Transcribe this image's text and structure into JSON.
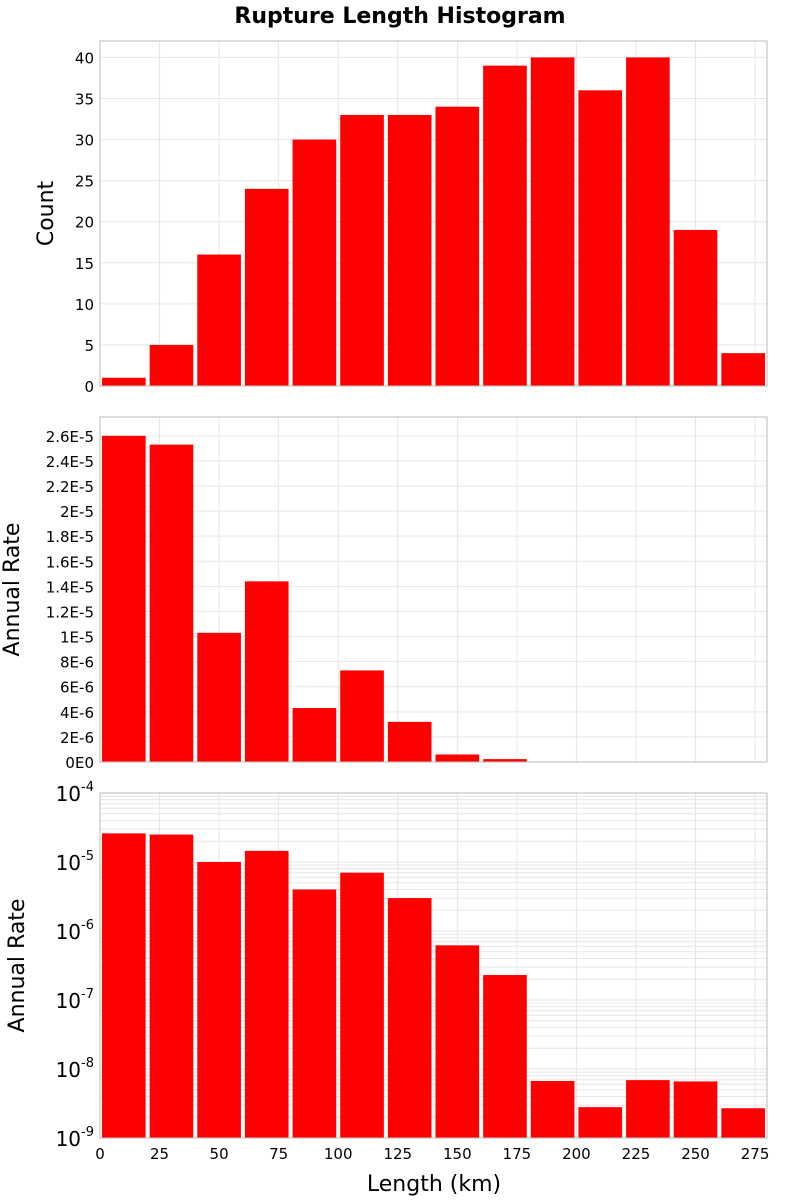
{
  "chart_data": {
    "type": "bar",
    "title": "Rupture Length Histogram",
    "bar_color": "#ff0000",
    "grid_color": "#e6e6e6",
    "frame_color": "#bbbbbb",
    "xlabel": "Length (km)",
    "xlim": [
      0,
      280
    ],
    "x_ticks": [
      0,
      25,
      50,
      75,
      100,
      125,
      150,
      175,
      200,
      225,
      250,
      275
    ],
    "bin_width": 20,
    "bin_centers": [
      10,
      30,
      50,
      70,
      90,
      110,
      130,
      150,
      170,
      190,
      210,
      230,
      250,
      270
    ],
    "panels": [
      {
        "ylabel": "Count",
        "scale": "linear",
        "ylim": [
          0,
          42
        ],
        "y_ticks": [
          0,
          5,
          10,
          15,
          20,
          25,
          30,
          35,
          40
        ],
        "y_tick_labels": [
          "0",
          "5",
          "10",
          "15",
          "20",
          "25",
          "30",
          "35",
          "40"
        ],
        "values": [
          1,
          5,
          16,
          24,
          30,
          33,
          33,
          34,
          39,
          40,
          36,
          40,
          19,
          4
        ]
      },
      {
        "ylabel": "Annual Rate",
        "scale": "linear",
        "ylim": [
          0,
          2.75e-05
        ],
        "y_ticks": [
          0,
          2e-06,
          4e-06,
          6e-06,
          8e-06,
          1e-05,
          1.2e-05,
          1.4e-05,
          1.6e-05,
          1.8e-05,
          2e-05,
          2.2e-05,
          2.4e-05,
          2.6e-05
        ],
        "y_tick_labels": [
          "0E0",
          "2E-6",
          "4E-6",
          "6E-6",
          "8E-6",
          "1E-5",
          "1.2E-5",
          "1.4E-5",
          "1.6E-5",
          "1.8E-5",
          "2E-5",
          "2.2E-5",
          "2.4E-5",
          "2.6E-5"
        ],
        "values": [
          2.6e-05,
          2.53e-05,
          1.03e-05,
          1.44e-05,
          4.3e-06,
          7.3e-06,
          3.2e-06,
          6e-07,
          2.3e-07,
          7e-09,
          3e-09,
          7e-09,
          7e-09,
          3e-09
        ]
      },
      {
        "ylabel": "Annual Rate",
        "scale": "log",
        "ylim": [
          1e-09,
          0.0001
        ],
        "y_ticks": [
          1e-09,
          1e-08,
          1e-07,
          1e-06,
          1e-05,
          0.0001
        ],
        "y_tick_base": "10",
        "y_tick_exponents": [
          "-9",
          "-8",
          "-7",
          "-6",
          "-5",
          "-4"
        ],
        "values": [
          2.6e-05,
          2.5e-05,
          1e-05,
          1.45e-05,
          4e-06,
          7e-06,
          3e-06,
          6.2e-07,
          2.3e-07,
          6.7e-09,
          2.8e-09,
          6.9e-09,
          6.6e-09,
          2.7e-09
        ]
      }
    ]
  }
}
